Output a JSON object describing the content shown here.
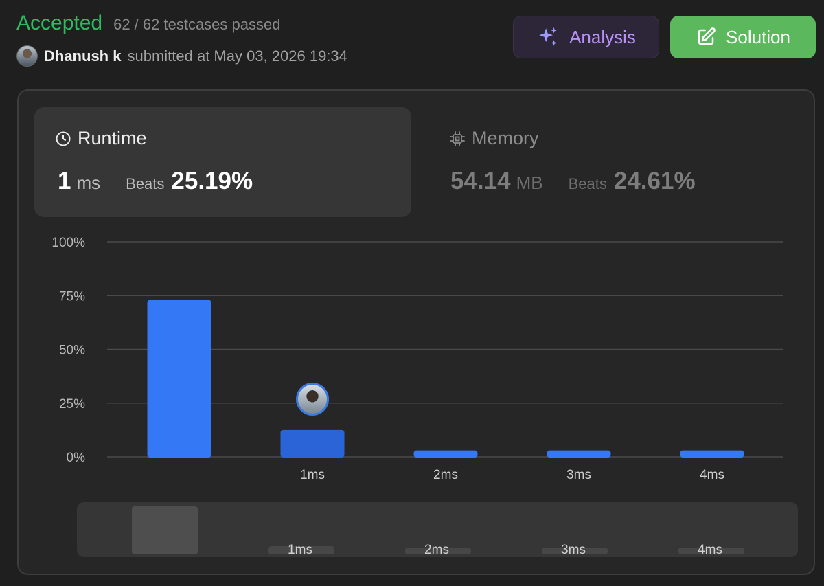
{
  "header": {
    "status": "Accepted",
    "testcases": "62 / 62 testcases passed",
    "user_name": "Dhanush k",
    "submitted_text": "submitted at May 03, 2026 19:34",
    "analysis_label": "Analysis",
    "solution_label": "Solution"
  },
  "runtime": {
    "title": "Runtime",
    "value": "1",
    "unit": "ms",
    "beats_label": "Beats",
    "beats_value": "25.19%"
  },
  "memory": {
    "title": "Memory",
    "value": "54.14",
    "unit": "MB",
    "beats_label": "Beats",
    "beats_value": "24.61%"
  },
  "colors": {
    "accepted": "#2cbb5d",
    "bar": "#3478f6",
    "bar_selected": "#2b64d6",
    "solution_button": "#5cb85c",
    "analysis_text": "#b790f8"
  },
  "chart_data": {
    "type": "bar",
    "categories": [
      "",
      "1ms",
      "2ms",
      "3ms",
      "4ms"
    ],
    "values": [
      73,
      12.5,
      3,
      3,
      3
    ],
    "selected_index": 1,
    "y_ticks": [
      "100%",
      "75%",
      "50%",
      "25%",
      "0%"
    ],
    "ylim": [
      0,
      100
    ],
    "grid": true
  }
}
